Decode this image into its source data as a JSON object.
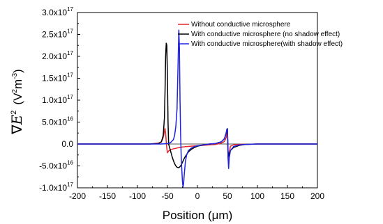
{
  "chart_data": {
    "type": "line",
    "xlabel": "Position (μm)",
    "ylabel_parts": {
      "symbol": "∇",
      "var": "E",
      "var_sup": "2",
      "unit_open": "(V",
      "unit_sup1": "2",
      "unit_mid": "m",
      "unit_sup2": "-3",
      "unit_close": ")"
    },
    "xlim": [
      -200,
      200
    ],
    "ylim": [
      -1e+17,
      3e+17
    ],
    "x_ticks": [
      -200,
      -150,
      -100,
      -50,
      0,
      50,
      100,
      150,
      200
    ],
    "x_tick_labels": [
      "-200",
      "-150",
      "-100",
      "-50",
      "0",
      "50",
      "100",
      "150",
      "200"
    ],
    "y_ticks": [
      -1e+17,
      -5e+16,
      0,
      5e+16,
      1e+17,
      1.5e+17,
      2e+17,
      2.5e+17,
      3e+17
    ],
    "y_tick_labels": [
      "-1.0x10",
      "-5.0x10",
      "0.0",
      "5.0x10",
      "1.0x10",
      "1.5x10",
      "2.0x10",
      "2.5x10",
      "3.0x10"
    ],
    "y_tick_exponents": [
      "17",
      "16",
      "",
      "16",
      "17",
      "17",
      "17",
      "17",
      "17"
    ],
    "legend_position": "top-right",
    "series": [
      {
        "name": "Without conductive microsphere",
        "color": "#e8262b",
        "x": [
          -200,
          -100,
          -80,
          -65,
          -60,
          -57,
          -55,
          -54,
          -53,
          -52,
          -51,
          -50,
          -48,
          -45,
          -40,
          -30,
          -20,
          -10,
          0,
          10,
          20,
          30,
          40,
          45,
          48,
          49,
          50,
          51,
          52,
          53,
          55,
          60,
          70,
          100,
          150,
          200
        ],
        "y": [
          0,
          0,
          0.0,
          2000000000000000.0,
          5000000000000000.0,
          1.5e+16,
          2.8e+16,
          3.5e+16,
          2.5e+16,
          5000000000000000.0,
          -1e+16,
          -2e+16,
          -1.6e+16,
          -1.3e+16,
          -1.1e+16,
          -8000000000000000.0,
          -6000000000000000.0,
          -5000000000000000.0,
          -4000000000000000.0,
          -3000000000000000.0,
          -2000000000000000.0,
          -1000000000000000.0,
          2000000000000000.0,
          6000000000000000.0,
          1.5e+16,
          2.8e+16,
          3.2e+16,
          -3e+16,
          -4.8e+16,
          -2e+16,
          -5000000000000000.0,
          -2000000000000000.0,
          -1000000000000000.0,
          0,
          0,
          0
        ]
      },
      {
        "name": "With conductive microsphere (no shadow effect)",
        "color": "#000000",
        "x": [
          -200,
          -80,
          -65,
          -60,
          -57,
          -55,
          -54,
          -53,
          -52,
          -51,
          -50,
          -49,
          -48,
          -46,
          -44,
          -42,
          -40,
          -38,
          -36,
          -34,
          -32,
          -30,
          -28,
          -26,
          -24,
          -22,
          -20,
          -15,
          -10,
          -5,
          0,
          10,
          20,
          30,
          40,
          45,
          48,
          49,
          50,
          51,
          52,
          53,
          55,
          60,
          70,
          80,
          100,
          200
        ],
        "y": [
          0,
          0,
          1000000000000000.0,
          5000000000000000.0,
          2e+16,
          6e+16,
          1.2e+17,
          2e+17,
          2.3e+17,
          2.25e+17,
          1.5e+17,
          5e+16,
          0,
          -1e+16,
          -2e+16,
          -3e+16,
          -3.8e+16,
          -4.5e+16,
          -5e+16,
          -5.3e+16,
          -5.4e+16,
          -5.3e+16,
          -5e+16,
          -4.5e+16,
          -3.9e+16,
          -3.3e+16,
          -2.8e+16,
          -1.8e+16,
          -1.2e+16,
          -8000000000000000.0,
          -5000000000000000.0,
          -2000000000000000.0,
          0,
          1000000000000000.0,
          5000000000000000.0,
          1.2e+16,
          2.5e+16,
          3.3e+16,
          3.5e+16,
          -1.5e+16,
          -2.8e+16,
          -2.2e+16,
          -1.5e+16,
          -8000000000000000.0,
          -3000000000000000.0,
          -1000000000000000.0,
          0,
          0
        ]
      },
      {
        "name": "With conductive microsphere(with shadow effect)",
        "color": "#1f23e0",
        "x": [
          -200,
          -60,
          -50,
          -45,
          -40,
          -38,
          -36,
          -34,
          -33,
          -32,
          -31,
          -30,
          -29,
          -28,
          -27,
          -26,
          -25,
          -24,
          -23,
          -22,
          -20,
          -18,
          -15,
          -10,
          -5,
          0,
          10,
          20,
          30,
          40,
          45,
          48,
          49,
          50,
          51,
          52,
          53,
          55,
          60,
          70,
          80,
          100,
          200
        ],
        "y": [
          0,
          0,
          1000000000000000.0,
          3000000000000000.0,
          1e+16,
          2e+16,
          4e+16,
          8e+16,
          1.4e+17,
          2e+17,
          2.6e+17,
          2.2e+17,
          1e+17,
          2e+16,
          -3e+16,
          -6e+16,
          -8.5e+16,
          -9.8e+16,
          -9e+16,
          -7e+16,
          -4e+16,
          -2.5e+16,
          -1.5e+16,
          -9000000000000000.0,
          -6000000000000000.0,
          -4000000000000000.0,
          -2000000000000000.0,
          0,
          1000000000000000.0,
          5000000000000000.0,
          1.2e+16,
          2.6e+16,
          3.3e+16,
          3.5e+16,
          -3e+16,
          -5.6e+16,
          -3.2e+16,
          -1.5e+16,
          -6000000000000000.0,
          -2000000000000000.0,
          -1000000000000000.0,
          0,
          0
        ]
      }
    ]
  }
}
